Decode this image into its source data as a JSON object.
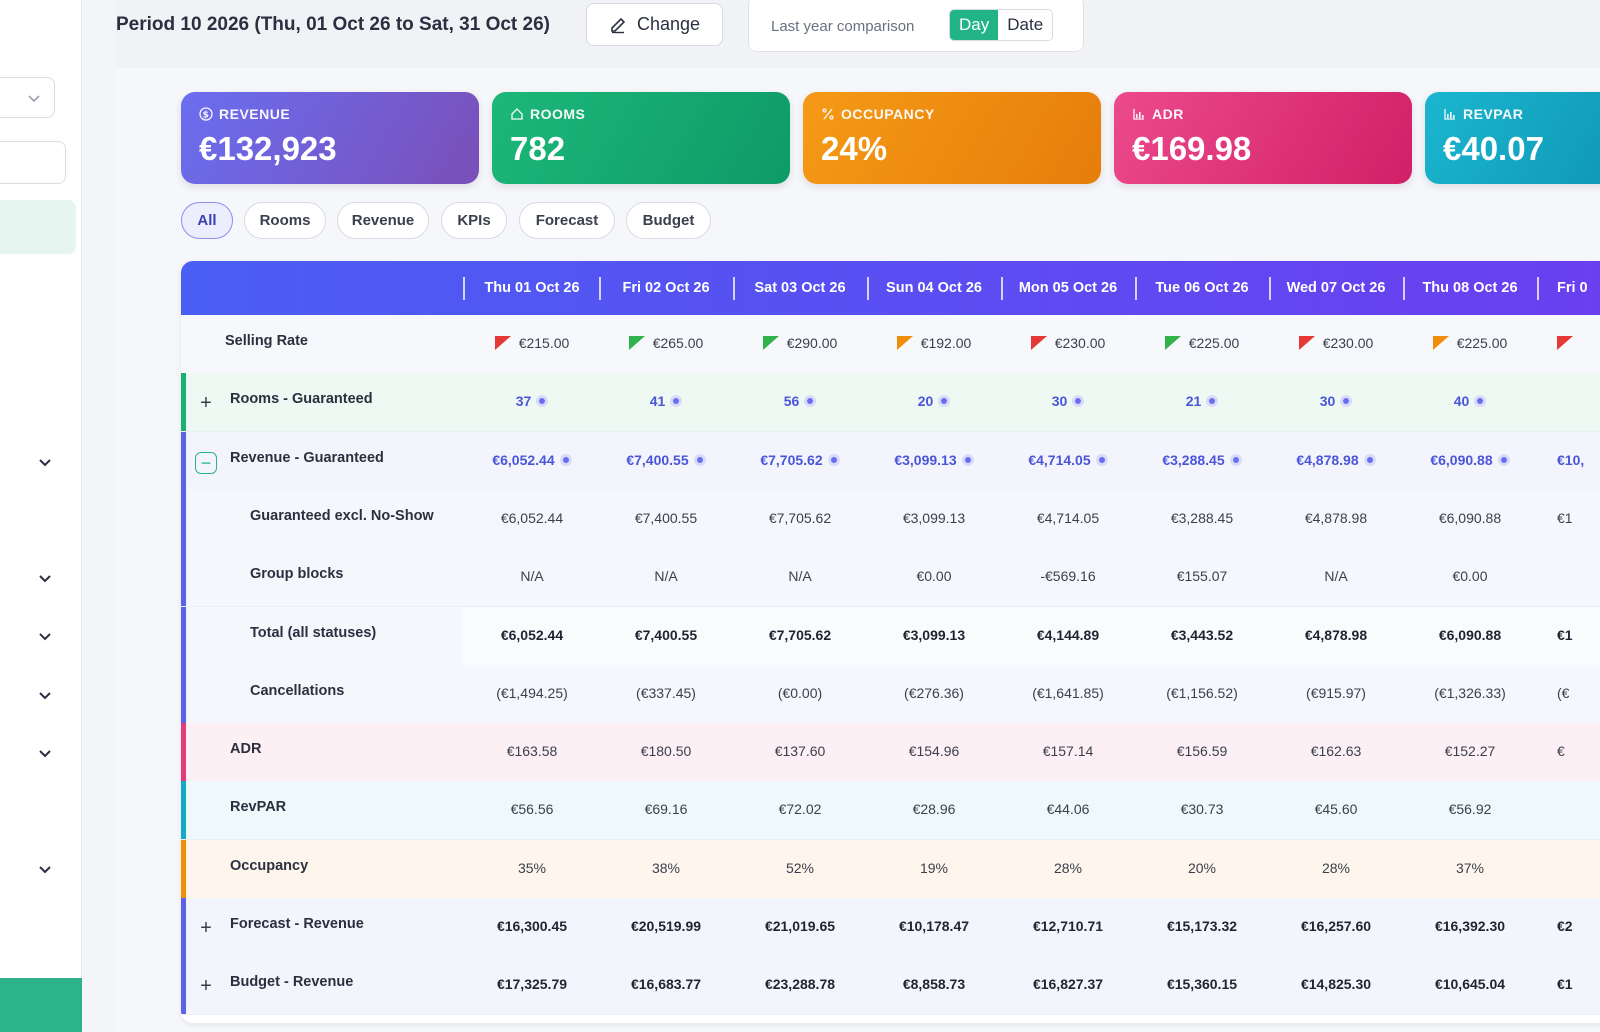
{
  "header": {
    "period_title": "Period 10 2026 (Thu, 01 Oct 26 to Sat, 31 Oct 26)",
    "change_label": "Change",
    "comparison_label": "Last year comparison",
    "toggle_day": "Day",
    "toggle_date": "Date"
  },
  "kpis": [
    {
      "label": "REVENUE",
      "value": "€132,923",
      "icon": "dollar-circle-icon",
      "color": "#6c5fd6"
    },
    {
      "label": "ROOMS",
      "value": "782",
      "icon": "home-icon",
      "color": "#12b07a"
    },
    {
      "label": "OCCUPANCY",
      "value": "24%",
      "icon": "percent-icon",
      "color": "#f08d0b"
    },
    {
      "label": "ADR",
      "value": "€169.98",
      "icon": "bar-chart-icon",
      "color": "#e43a7c"
    },
    {
      "label": "REVPAR",
      "value": "€40.07",
      "icon": "bar-chart-icon",
      "color": "#14a9c7"
    }
  ],
  "filters": [
    "All",
    "Rooms",
    "Revenue",
    "KPIs",
    "Forecast",
    "Budget"
  ],
  "active_filter": "All",
  "columns": [
    "Thu 01 Oct 26",
    "Fri 02 Oct 26",
    "Sat 03 Oct 26",
    "Sun 04 Oct 26",
    "Mon 05 Oct 26",
    "Tue 06 Oct 26",
    "Wed 07 Oct 26",
    "Thu 08 Oct 26",
    "Fri 0"
  ],
  "rows": {
    "selling_rate": {
      "label": "Selling Rate",
      "values": [
        "€215.00",
        "€265.00",
        "€290.00",
        "€192.00",
        "€230.00",
        "€225.00",
        "€230.00",
        "€225.00",
        ""
      ],
      "flags": [
        "#e53935",
        "#2fb34a",
        "#2fb34a",
        "#f08d0b",
        "#e53935",
        "#2fb34a",
        "#e53935",
        "#f08d0b",
        "#e53935"
      ]
    },
    "rooms_guaranteed": {
      "label": "Rooms - Guaranteed",
      "values": [
        "37",
        "41",
        "56",
        "20",
        "30",
        "21",
        "30",
        "40",
        ""
      ]
    },
    "revenue_guaranteed": {
      "label": "Revenue - Guaranteed",
      "values": [
        "€6,052.44",
        "€7,400.55",
        "€7,705.62",
        "€3,099.13",
        "€4,714.05",
        "€3,288.45",
        "€4,878.98",
        "€6,090.88",
        "€10,"
      ]
    },
    "guaranteed_excl": {
      "label": "Guaranteed excl. No-Show",
      "values": [
        "€6,052.44",
        "€7,400.55",
        "€7,705.62",
        "€3,099.13",
        "€4,714.05",
        "€3,288.45",
        "€4,878.98",
        "€6,090.88",
        "€1"
      ]
    },
    "group_blocks": {
      "label": "Group blocks",
      "values": [
        "N/A",
        "N/A",
        "N/A",
        "€0.00",
        "-€569.16",
        "€155.07",
        "N/A",
        "€0.00",
        ""
      ]
    },
    "total_all": {
      "label": "Total (all statuses)",
      "values": [
        "€6,052.44",
        "€7,400.55",
        "€7,705.62",
        "€3,099.13",
        "€4,144.89",
        "€3,443.52",
        "€4,878.98",
        "€6,090.88",
        "€1"
      ]
    },
    "cancellations": {
      "label": "Cancellations",
      "values": [
        "(€1,494.25)",
        "(€337.45)",
        "(€0.00)",
        "(€276.36)",
        "(€1,641.85)",
        "(€1,156.52)",
        "(€915.97)",
        "(€1,326.33)",
        "(€"
      ]
    },
    "adr": {
      "label": "ADR",
      "values": [
        "€163.58",
        "€180.50",
        "€137.60",
        "€154.96",
        "€157.14",
        "€156.59",
        "€162.63",
        "€152.27",
        "€"
      ]
    },
    "revpar": {
      "label": "RevPAR",
      "values": [
        "€56.56",
        "€69.16",
        "€72.02",
        "€28.96",
        "€44.06",
        "€30.73",
        "€45.60",
        "€56.92",
        ""
      ]
    },
    "occupancy": {
      "label": "Occupancy",
      "values": [
        "35%",
        "38%",
        "52%",
        "19%",
        "28%",
        "20%",
        "28%",
        "37%",
        ""
      ]
    },
    "forecast_revenue": {
      "label": "Forecast - Revenue",
      "values": [
        "€16,300.45",
        "€20,519.99",
        "€21,019.65",
        "€10,178.47",
        "€12,710.71",
        "€15,173.32",
        "€16,257.60",
        "€16,392.30",
        "€2"
      ]
    },
    "budget_revenue": {
      "label": "Budget - Revenue",
      "values": [
        "€17,325.79",
        "€16,683.77",
        "€23,288.78",
        "€8,858.73",
        "€16,827.37",
        "€15,360.15",
        "€14,825.30",
        "€10,645.04",
        "€1"
      ]
    }
  }
}
